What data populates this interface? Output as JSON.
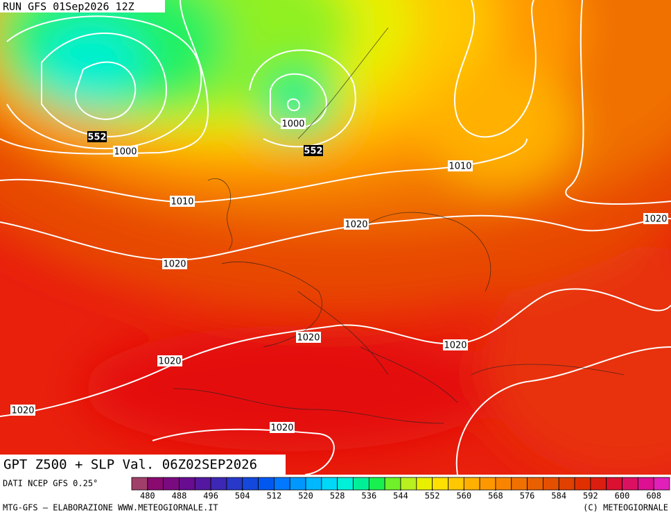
{
  "header": {
    "run": "RUN GFS 01Sep2026 12Z"
  },
  "map": {
    "title": "GPT Z500 + SLP Val. 06Z02SEP2026",
    "contour_labels": [
      {
        "text": "552",
        "kind": "gpt"
      },
      {
        "text": "1000",
        "kind": "slp"
      },
      {
        "text": "1000",
        "kind": "slp"
      },
      {
        "text": "552",
        "kind": "gpt"
      },
      {
        "text": "1010",
        "kind": "slp"
      },
      {
        "text": "1010",
        "kind": "slp"
      },
      {
        "text": "1020",
        "kind": "slp"
      },
      {
        "text": "1020",
        "kind": "slp"
      },
      {
        "text": "1020",
        "kind": "slp"
      },
      {
        "text": "1020",
        "kind": "slp"
      },
      {
        "text": "1020",
        "kind": "slp"
      },
      {
        "text": "1020",
        "kind": "slp"
      },
      {
        "text": "1020",
        "kind": "slp"
      },
      {
        "text": "1020",
        "kind": "slp"
      }
    ]
  },
  "colorbar": {
    "ticks": [
      480,
      488,
      496,
      504,
      512,
      520,
      528,
      536,
      544,
      552,
      560,
      568,
      576,
      584,
      592,
      600,
      608
    ],
    "start": 476,
    "step": 4,
    "colors": [
      "#a0406a",
      "#8a0a70",
      "#7a0a80",
      "#680c90",
      "#5418a0",
      "#3c28b4",
      "#2838c8",
      "#1448dc",
      "#0058f0",
      "#0078ff",
      "#0098ff",
      "#00b8ff",
      "#00d8f8",
      "#00f0d8",
      "#00f098",
      "#18f050",
      "#70f028",
      "#b8f020",
      "#e8f000",
      "#ffe000",
      "#ffc800",
      "#ffb000",
      "#ff9800",
      "#f88400",
      "#f07000",
      "#e86000",
      "#e45000",
      "#e04000",
      "#e03000",
      "#dc1e10",
      "#dc1030",
      "#dc1060",
      "#dc1090",
      "#e020b8"
    ]
  },
  "footer": {
    "source": "DATI NCEP GFS 0.25°",
    "credit": "MTG-GFS — ELABORAZIONE WWW.METEOGIORNALE.IT",
    "copyright": "(C) METEOGIORNALE"
  }
}
